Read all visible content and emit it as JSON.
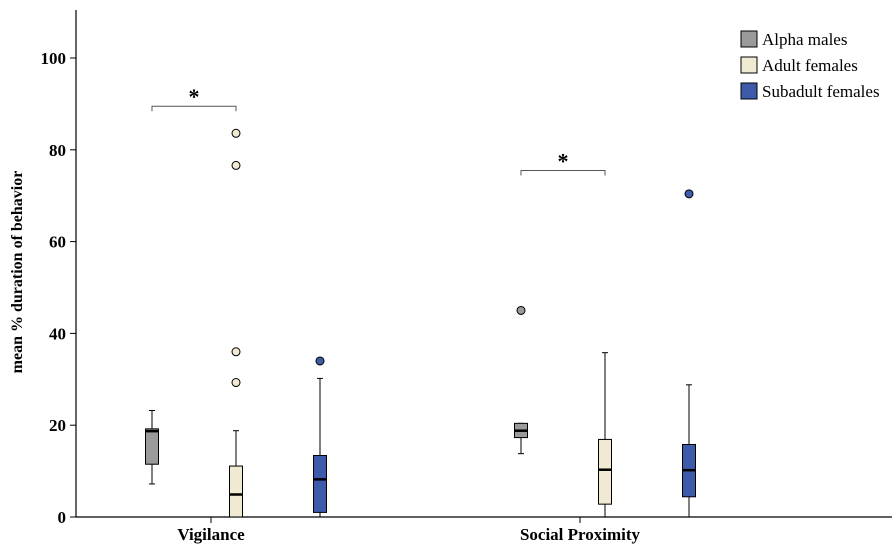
{
  "chart_data": {
    "type": "boxplot",
    "title": "",
    "xlabel": "",
    "ylabel": "mean % duration of behavior",
    "ylim": [
      0,
      110
    ],
    "yticks": [
      0,
      20,
      40,
      60,
      80,
      100
    ],
    "categories": [
      "Vigilance",
      "Social Proximity"
    ],
    "grid": false,
    "legend_position": "top-right",
    "series": [
      {
        "name": "Alpha males",
        "color": "#9a9a9a",
        "boxes": [
          {
            "min": 7.2,
            "q1": 11.5,
            "median": 18.7,
            "q3": 19.2,
            "max": 23.2,
            "outliers": []
          },
          {
            "min": 13.8,
            "q1": 17.3,
            "median": 18.8,
            "q3": 20.4,
            "max": 20.4,
            "outliers": [
              45.0
            ]
          }
        ]
      },
      {
        "name": "Adult females",
        "color": "#f0ead2",
        "boxes": [
          {
            "min": 0.0,
            "q1": 0.0,
            "median": 4.9,
            "q3": 11.1,
            "max": 18.8,
            "outliers": [
              29.3,
              36.0,
              76.6,
              83.6
            ]
          },
          {
            "min": 0.0,
            "q1": 2.8,
            "median": 10.3,
            "q3": 16.9,
            "max": 35.8,
            "outliers": []
          }
        ]
      },
      {
        "name": "Subadult females",
        "color": "#3d5baa",
        "boxes": [
          {
            "min": 0.0,
            "q1": 1.0,
            "median": 8.2,
            "q3": 13.4,
            "max": 30.2,
            "outliers": [
              34.0
            ]
          },
          {
            "min": 0.0,
            "q1": 4.4,
            "median": 10.2,
            "q3": 15.8,
            "max": 28.8,
            "outliers": [
              70.4
            ]
          }
        ]
      }
    ],
    "annotations": [
      {
        "text": "*",
        "category": 0,
        "from_series": 0,
        "to_series": 1,
        "y": 89.5
      },
      {
        "text": "*",
        "category": 1,
        "from_series": 0,
        "to_series": 1,
        "y": 75.5
      }
    ]
  }
}
